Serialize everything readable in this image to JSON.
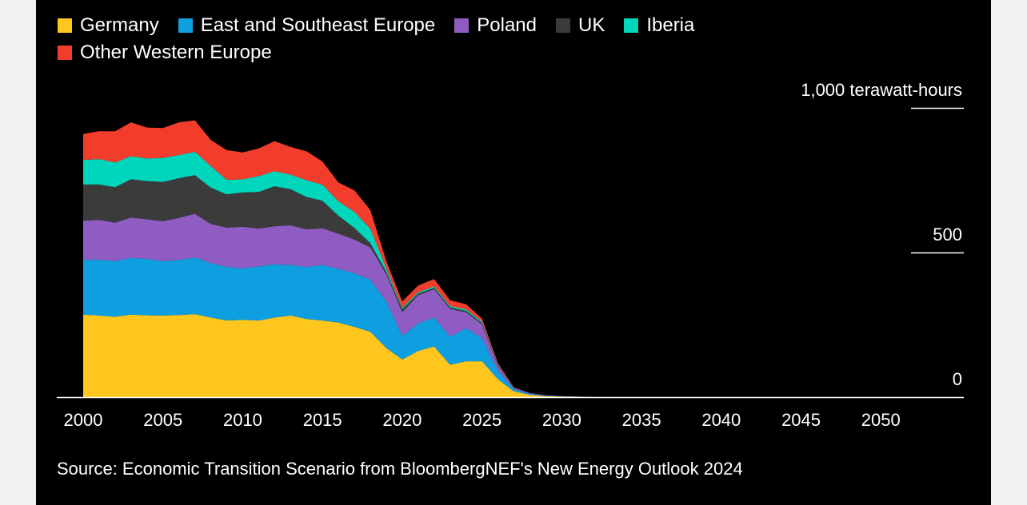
{
  "chart_data": {
    "type": "area",
    "stacked": true,
    "title": "",
    "xlabel": "",
    "ylabel": "1,000 terawatt-hours",
    "ylim": [
      0,
      1000
    ],
    "xlim": [
      2000,
      2055
    ],
    "y_ticks": [
      {
        "value": 0,
        "label": "0"
      },
      {
        "value": 500,
        "label": "500"
      },
      {
        "value": 1000,
        "label": "1,000"
      }
    ],
    "x_ticks": [
      "2000",
      "2005",
      "2010",
      "2015",
      "2020",
      "2025",
      "2030",
      "2035",
      "2040",
      "2045",
      "2050"
    ],
    "grid": false,
    "legend_position": "top-left",
    "x": [
      2000,
      2001,
      2002,
      2003,
      2004,
      2005,
      2006,
      2007,
      2008,
      2009,
      2010,
      2011,
      2012,
      2013,
      2014,
      2015,
      2016,
      2017,
      2018,
      2019,
      2020,
      2021,
      2022,
      2023,
      2024,
      2025,
      2026,
      2027,
      2028,
      2029,
      2030,
      2031,
      2032,
      2033,
      2034,
      2035
    ],
    "series": [
      {
        "name": "Germany",
        "color": "#ffc61e",
        "values": [
          285,
          282,
          278,
          285,
          283,
          282,
          284,
          287,
          275,
          265,
          267,
          265,
          275,
          282,
          270,
          265,
          258,
          243,
          226,
          170,
          130,
          160,
          175,
          112,
          124,
          124,
          62,
          20,
          8,
          3,
          2,
          1,
          0,
          0,
          0,
          0
        ]
      },
      {
        "name": "East and Southeast Europe",
        "color": "#0e9fe0",
        "values": [
          190,
          193,
          192,
          196,
          195,
          188,
          190,
          196,
          188,
          185,
          178,
          187,
          184,
          175,
          180,
          192,
          185,
          185,
          180,
          160,
          82,
          95,
          100,
          97,
          114,
          80,
          30,
          8,
          4,
          2,
          1,
          1,
          0,
          0,
          0,
          0
        ]
      },
      {
        "name": "Poland",
        "color": "#8f5cc2",
        "values": [
          135,
          138,
          133,
          140,
          137,
          138,
          146,
          151,
          136,
          136,
          144,
          131,
          132,
          137,
          130,
          127,
          122,
          117,
          111,
          95,
          82,
          98,
          98,
          96,
          55,
          48,
          15,
          3,
          2,
          1,
          1,
          0,
          0,
          0,
          0,
          0
        ]
      },
      {
        "name": "UK",
        "color": "#3b3b3b",
        "values": [
          125,
          122,
          123,
          132,
          132,
          136,
          137,
          133,
          125,
          115,
          119,
          126,
          138,
          125,
          112,
          95,
          62,
          40,
          15,
          8,
          10,
          5,
          5,
          5,
          5,
          5,
          2,
          0,
          0,
          0,
          0,
          0,
          0,
          0,
          0,
          0
        ]
      },
      {
        "name": "Iberia",
        "color": "#00d6bc",
        "values": [
          85,
          88,
          85,
          80,
          78,
          83,
          80,
          81,
          75,
          50,
          45,
          55,
          52,
          50,
          58,
          55,
          50,
          55,
          50,
          12,
          5,
          5,
          5,
          5,
          5,
          5,
          3,
          1,
          0,
          0,
          0,
          0,
          0,
          0,
          0,
          0
        ]
      },
      {
        "name": "Other Western Europe",
        "color": "#f23d2d",
        "values": [
          90,
          96,
          108,
          117,
          107,
          103,
          113,
          109,
          90,
          103,
          93,
          96,
          104,
          96,
          100,
          80,
          65,
          75,
          65,
          25,
          22,
          23,
          25,
          20,
          18,
          10,
          5,
          2,
          0,
          0,
          0,
          0,
          0,
          0,
          0,
          0
        ]
      }
    ]
  },
  "source": "Source: Economic Transition Scenario from BloombergNEF's New Energy Outlook 2024"
}
